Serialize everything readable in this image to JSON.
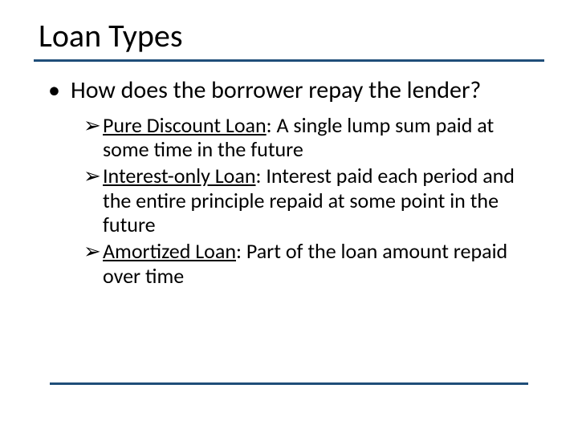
{
  "colors": {
    "title_rule": "#1f4e79",
    "footer_rule": "#1f4e79",
    "text": "#000000",
    "background": "#ffffff"
  },
  "title": "Loan Types",
  "body": {
    "level1": {
      "bullet": "•",
      "text": "How does the borrower repay the lender?"
    },
    "level2_bullet": "➢",
    "items": [
      {
        "term": "Pure Discount Loan",
        "rest": ": A single lump sum paid at some time in the future"
      },
      {
        "term": "Interest-only Loan",
        "rest": ": Interest paid each period and the entire principle repaid at some point in the future"
      },
      {
        "term": "Amortized Loan",
        "rest": ": Part of the loan amount repaid over time"
      }
    ]
  }
}
